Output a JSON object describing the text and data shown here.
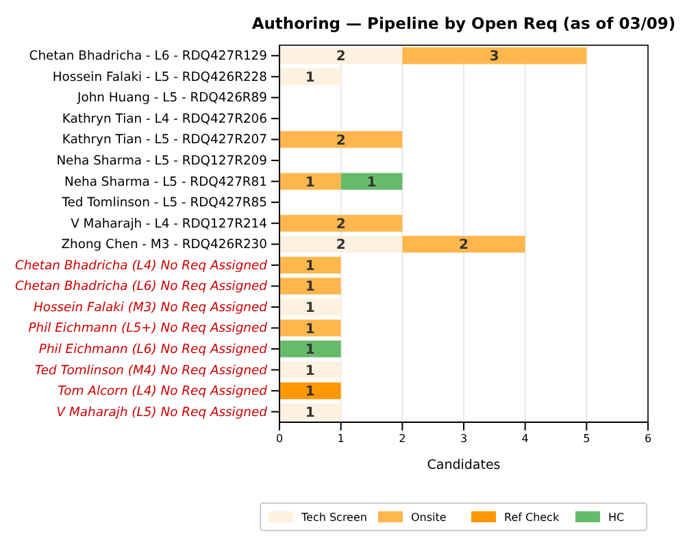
{
  "chart_data": {
    "type": "bar",
    "orientation": "horizontal",
    "stacked": true,
    "title": "Authoring — Pipeline by Open Req (as of 03/09)",
    "xlabel": "Candidates",
    "categories": [
      "Chetan Bhadricha - L6 - RDQ427R129",
      "Hossein Falaki - L5 - RDQ426R228",
      "John Huang - L5 - RDQ426R89",
      "Kathryn Tian - L4 - RDQ427R206",
      "Kathryn Tian - L5 - RDQ427R207",
      "Neha Sharma - L5 - RDQ127R209",
      "Neha Sharma - L5 - RDQ427R81",
      "Ted Tomlinson - L5 - RDQ427R85",
      "V Maharajh - L4 - RDQ127R214",
      "Zhong Chen - M3 - RDQ426R230",
      "Chetan Bhadricha (L4) No Req Assigned",
      "Chetan Bhadricha (L6) No Req Assigned",
      "Hossein Falaki (M3) No Req Assigned",
      "Phil Eichmann (L5+) No Req Assigned",
      "Phil Eichmann (L6) No Req Assigned",
      "Ted Tomlinson (M4) No Req Assigned",
      "Tom Alcorn (L4) No Req Assigned",
      "V Maharajh (L5) No Req Assigned"
    ],
    "series": [
      {
        "name": "Tech Screen",
        "color": "#fdf1df",
        "values": [
          2,
          1,
          null,
          null,
          null,
          null,
          null,
          null,
          null,
          2,
          null,
          null,
          1,
          null,
          null,
          1,
          null,
          1
        ]
      },
      {
        "name": "Onsite",
        "color": "#ffb74d",
        "values": [
          3,
          null,
          null,
          null,
          2,
          null,
          1,
          null,
          2,
          2,
          1,
          1,
          null,
          1,
          null,
          null,
          null,
          null
        ]
      },
      {
        "name": "Ref Check",
        "color": "#ff9800",
        "values": [
          null,
          null,
          null,
          null,
          null,
          null,
          null,
          null,
          null,
          null,
          null,
          null,
          null,
          null,
          null,
          null,
          1,
          null
        ]
      },
      {
        "name": "HC",
        "color": "#66bb6a",
        "values": [
          null,
          null,
          null,
          null,
          null,
          null,
          1,
          null,
          null,
          null,
          null,
          null,
          null,
          null,
          1,
          null,
          null,
          null
        ]
      }
    ],
    "xlim": [
      0,
      6
    ],
    "xticks": [
      0,
      1,
      2,
      3,
      4,
      5,
      6
    ],
    "grid": "x",
    "legend": "bottom",
    "data_labels": true
  }
}
